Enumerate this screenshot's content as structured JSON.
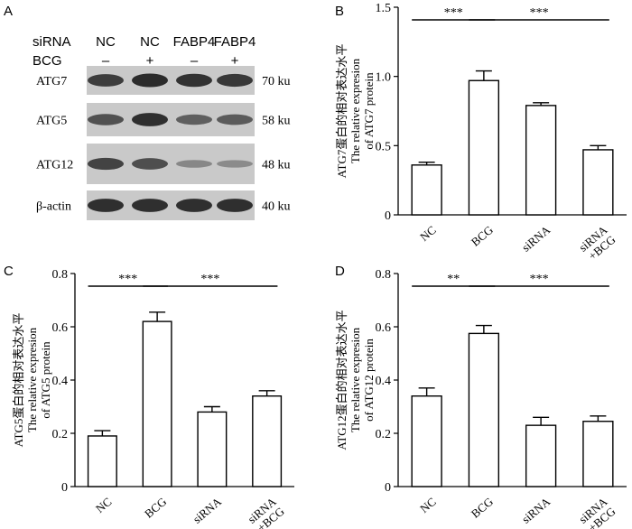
{
  "panels": {
    "A": {
      "letter": "A",
      "row_labels": {
        "siRNA": "siRNA",
        "BCG": "BCG"
      },
      "lanes": [
        {
          "sirna": "NC",
          "bcg": "–"
        },
        {
          "sirna": "NC",
          "bcg": "+"
        },
        {
          "sirna": "FABP4",
          "bcg": "–"
        },
        {
          "sirna": "FABP4",
          "bcg": "+"
        }
      ],
      "blots": [
        {
          "name": "ATG7",
          "size": "70 ku",
          "intensity": [
            0.82,
            0.92,
            0.88,
            0.85
          ]
        },
        {
          "name": "ATG5",
          "size": "58 ku",
          "intensity": [
            0.7,
            0.9,
            0.62,
            0.64
          ]
        },
        {
          "name": "ATG12",
          "size": "48 ku",
          "intensity": [
            0.78,
            0.72,
            0.38,
            0.36
          ]
        },
        {
          "name": "β-actin",
          "size": "40 ku",
          "intensity": [
            0.9,
            0.9,
            0.9,
            0.9
          ]
        }
      ]
    }
  },
  "chart_data": [
    {
      "panel": "B",
      "type": "bar",
      "categories": [
        "NC",
        "BCG",
        "siRNA",
        "siRNA\n+BCG"
      ],
      "values": [
        0.36,
        0.97,
        0.79,
        0.47
      ],
      "errors": [
        0.02,
        0.07,
        0.02,
        0.03
      ],
      "ylim": [
        0,
        1.5
      ],
      "yticks": [
        "0",
        "0.5",
        "1.0",
        "1.5"
      ],
      "ylabel_lines": [
        "ATG7蛋白的相对表达水平",
        "The relative expresion",
        "of ATG7 protein"
      ],
      "significance": [
        {
          "from": 0,
          "to": 1,
          "label": "***"
        },
        {
          "from": 1,
          "to": 3,
          "label": "***"
        }
      ]
    },
    {
      "panel": "C",
      "type": "bar",
      "categories": [
        "NC",
        "BCG",
        "siRNA",
        "siRNA\n+BCG"
      ],
      "values": [
        0.19,
        0.62,
        0.28,
        0.34
      ],
      "errors": [
        0.02,
        0.035,
        0.02,
        0.02
      ],
      "ylim": [
        0,
        0.8
      ],
      "yticks": [
        "0",
        "0.2",
        "0.4",
        "0.6",
        "0.8"
      ],
      "ylabel_lines": [
        "ATG5蛋白的相对表达水平",
        "The relative expresion",
        "of ATG5 protein"
      ],
      "significance": [
        {
          "from": 0,
          "to": 1,
          "label": "***"
        },
        {
          "from": 1,
          "to": 3,
          "label": "***"
        }
      ]
    },
    {
      "panel": "D",
      "type": "bar",
      "categories": [
        "NC",
        "BCG",
        "siRNA",
        "siRNA\n+BCG"
      ],
      "values": [
        0.34,
        0.575,
        0.23,
        0.245
      ],
      "errors": [
        0.03,
        0.03,
        0.03,
        0.02
      ],
      "ylim": [
        0,
        0.8
      ],
      "yticks": [
        "0",
        "0.2",
        "0.4",
        "0.6",
        "0.8"
      ],
      "ylabel_lines": [
        "ATG12蛋白的相对表达水平",
        "The relative expresion",
        "of ATG12 protein"
      ],
      "significance": [
        {
          "from": 0,
          "to": 1,
          "label": "**"
        },
        {
          "from": 1,
          "to": 3,
          "label": "***"
        }
      ]
    }
  ]
}
